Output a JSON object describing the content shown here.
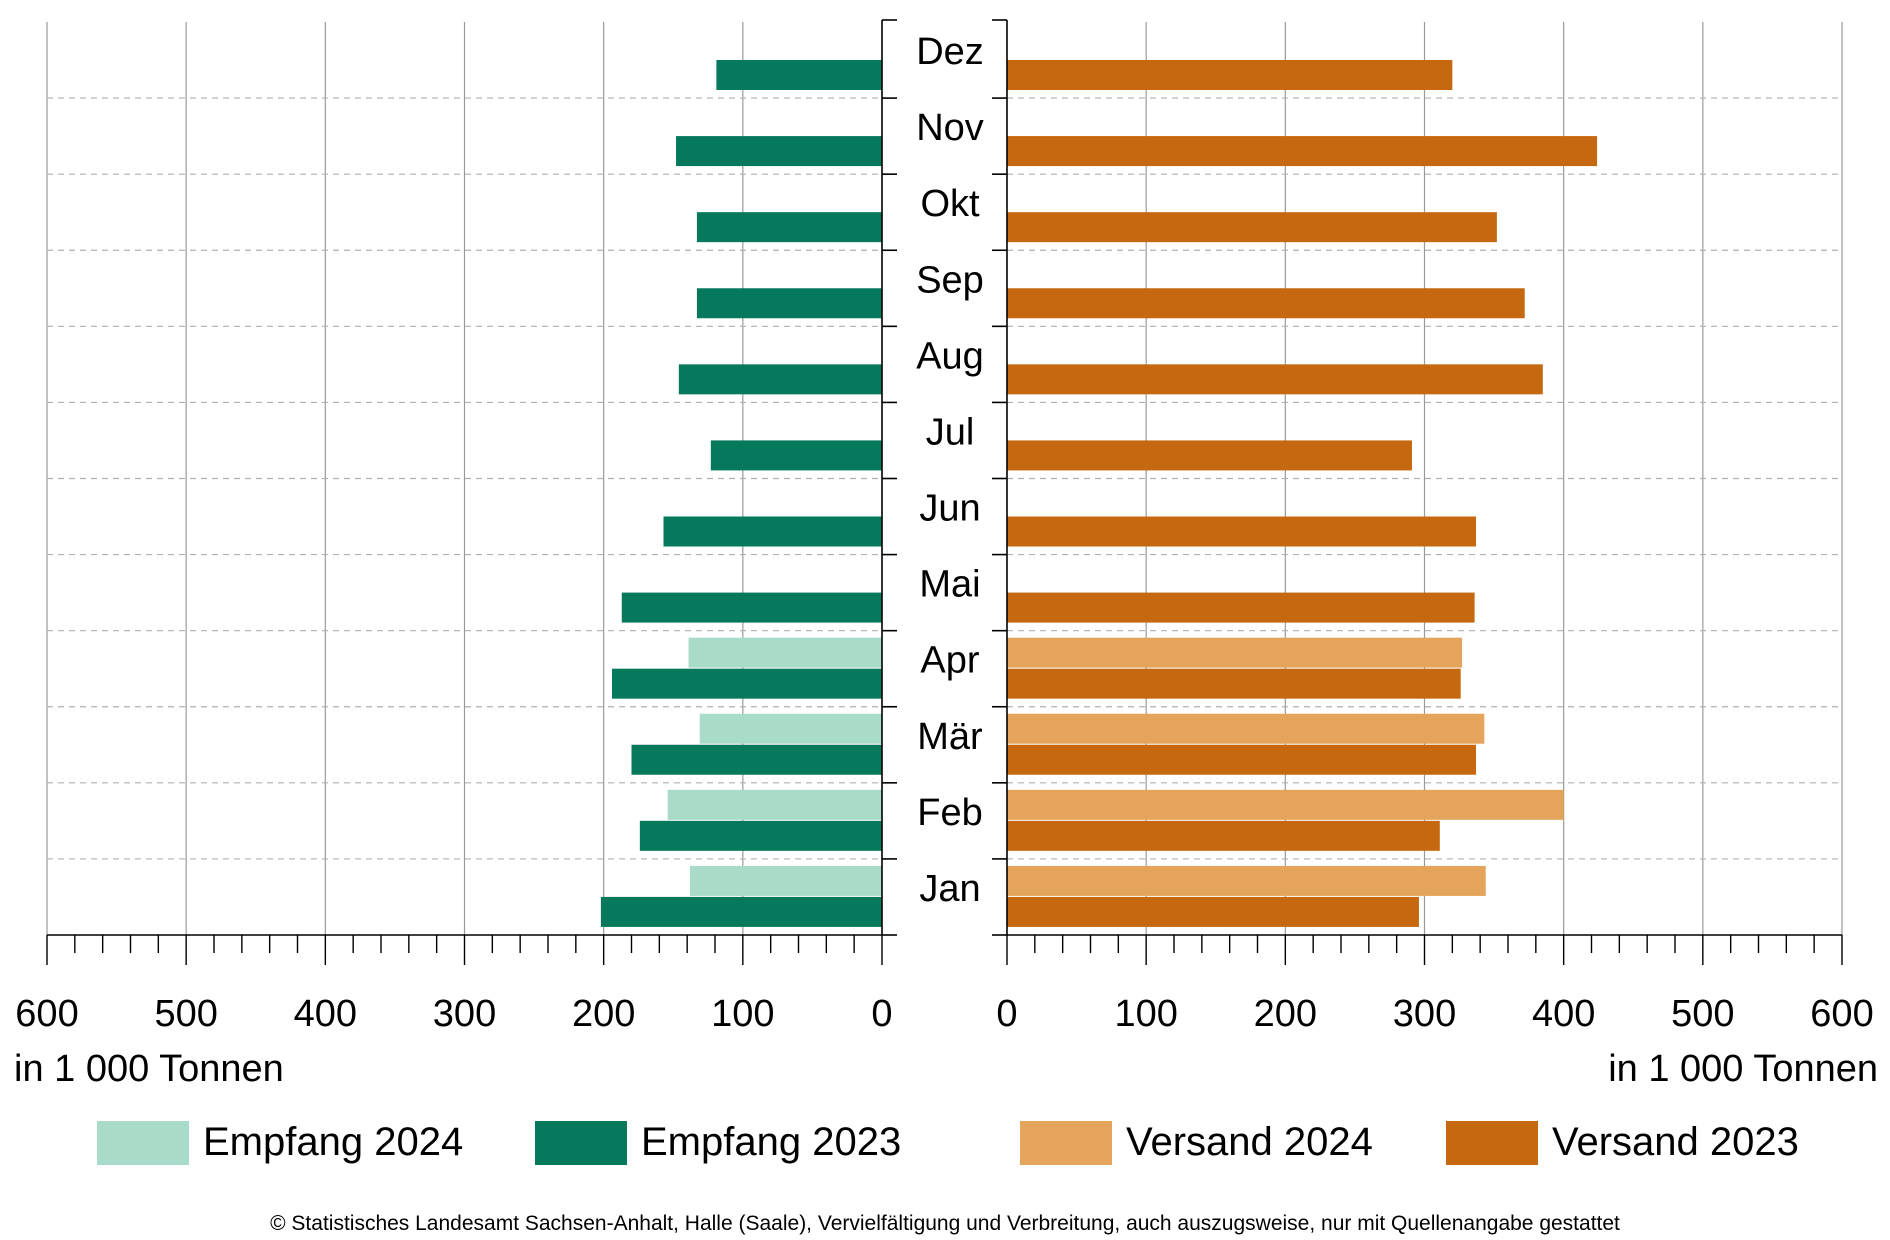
{
  "chart_data": {
    "type": "bar",
    "orientation": "horizontal-butterfly",
    "categories": [
      "Jan",
      "Feb",
      "Mär",
      "Apr",
      "Mai",
      "Jun",
      "Jul",
      "Aug",
      "Sep",
      "Okt",
      "Nov",
      "Dez"
    ],
    "left_panel": {
      "xlim": [
        0,
        600
      ],
      "ticks": [
        600,
        500,
        400,
        300,
        200,
        100,
        0
      ],
      "unit_label": "in 1 000 Tonnen",
      "series": [
        {
          "name": "Empfang 2024",
          "color": "#a8dbc8",
          "values": [
            138,
            154,
            131,
            139,
            null,
            null,
            null,
            null,
            null,
            null,
            null,
            null
          ]
        },
        {
          "name": "Empfang 2023",
          "color": "#06785c",
          "values": [
            202,
            174,
            180,
            194,
            187,
            157,
            123,
            146,
            133,
            133,
            148,
            119
          ]
        }
      ]
    },
    "right_panel": {
      "xlim": [
        0,
        600
      ],
      "ticks": [
        0,
        100,
        200,
        300,
        400,
        500,
        600
      ],
      "unit_label": "in 1 000 Tonnen",
      "series": [
        {
          "name": "Versand 2024",
          "color": "#e5a45b",
          "values": [
            344,
            400,
            343,
            327,
            null,
            null,
            null,
            null,
            null,
            null,
            null,
            null
          ]
        },
        {
          "name": "Versand 2023",
          "color": "#c5680f",
          "values": [
            296,
            311,
            337,
            326,
            336,
            337,
            291,
            385,
            372,
            352,
            424,
            320
          ]
        }
      ]
    },
    "grid": true
  },
  "legend": [
    {
      "label": "Empfang 2024",
      "color": "#a8dbc8"
    },
    {
      "label": "Empfang 2023",
      "color": "#06785c"
    },
    {
      "label": "Versand 2024",
      "color": "#e5a45b"
    },
    {
      "label": "Versand 2023",
      "color": "#c5680f"
    }
  ],
  "copyright": "© Statistisches Landesamt Sachsen-Anhalt, Halle (Saale), Vervielfältigung und Verbreitung, auch auszugsweise, nur mit Quellenangabe gestattet"
}
